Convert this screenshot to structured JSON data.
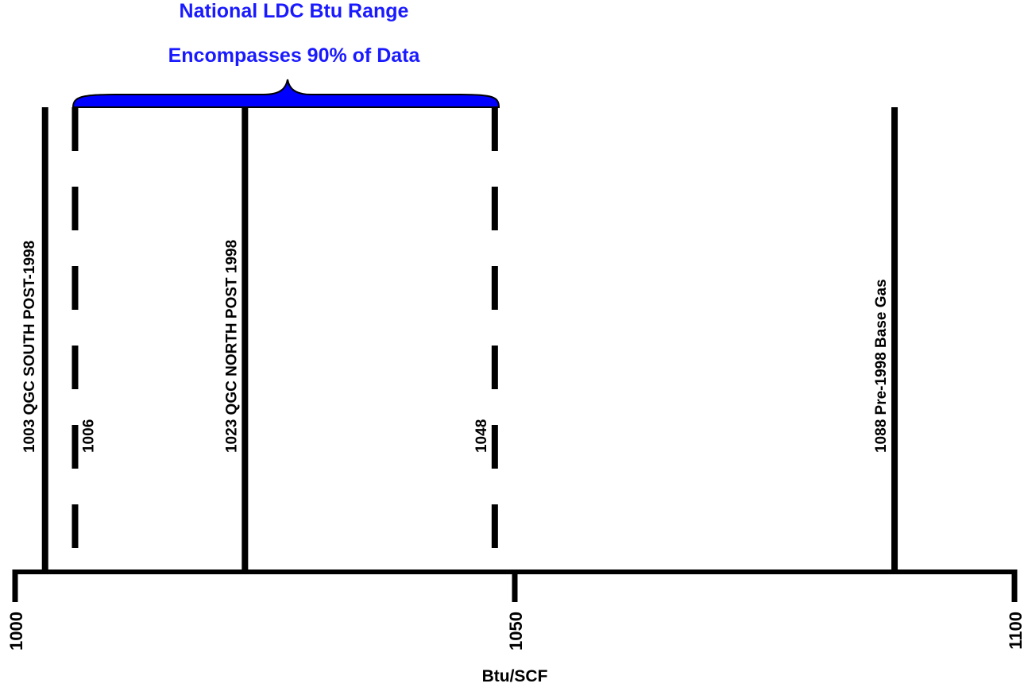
{
  "chart_data": {
    "type": "number-line",
    "title": [
      "National LDC Btu Range",
      "Encompasses 90% of Data"
    ],
    "xlabel": "Btu/SCF",
    "xlim": [
      1000,
      1100
    ],
    "ticks": [
      "1000",
      "1050",
      "1100"
    ],
    "markers": [
      {
        "value": 1003,
        "label": "1003 QGC SOUTH POST-1998",
        "style": "solid"
      },
      {
        "value": 1006,
        "label": "1006",
        "style": "dashed"
      },
      {
        "value": 1023,
        "label": "1023 QGC NORTH POST 1998",
        "style": "solid"
      },
      {
        "value": 1048,
        "label": "1048",
        "style": "dashed"
      },
      {
        "value": 1088,
        "label": "1088 Pre-1998 Base Gas",
        "style": "solid"
      }
    ],
    "range": {
      "from": 1006,
      "to": 1048
    },
    "colors": {
      "accent": "#1a1aff",
      "brace": "#0000ff",
      "line": "#000000"
    }
  }
}
